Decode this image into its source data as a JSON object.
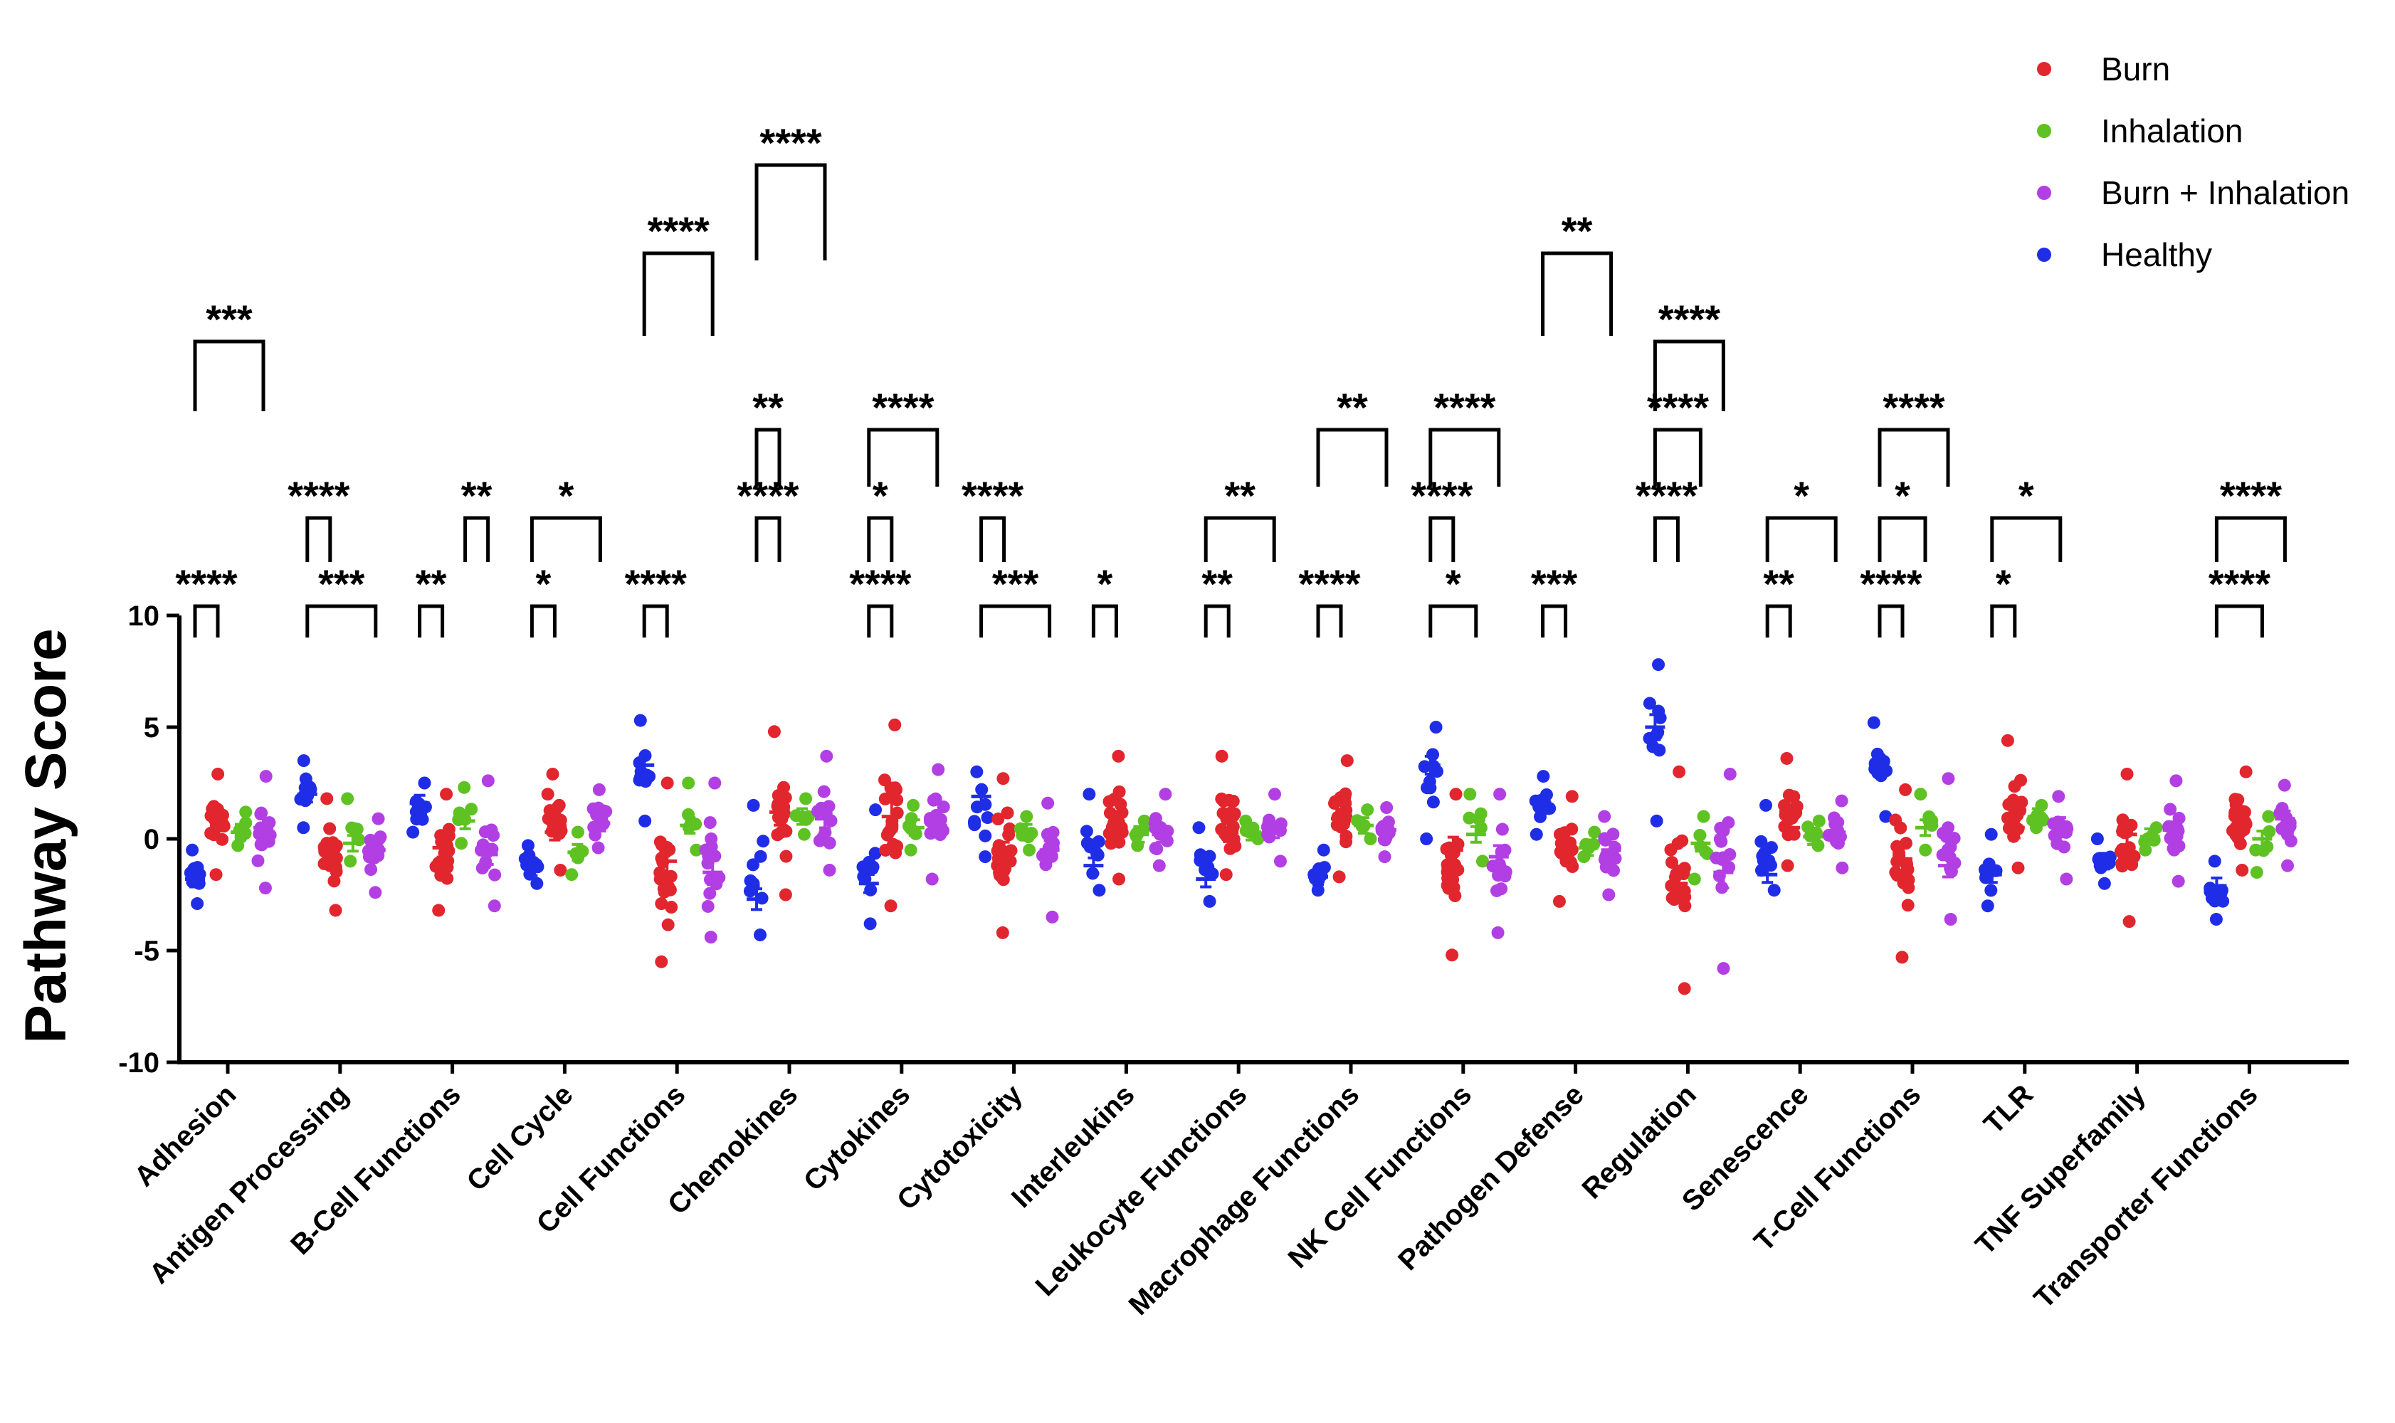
{
  "chart_data": {
    "type": "scatter",
    "ylabel": "Pathway Score",
    "ylim": [
      -10,
      10
    ],
    "yticks": [
      10,
      5,
      0,
      -5,
      -10
    ],
    "legend_placement": "top-right",
    "categories": [
      "Adhesion",
      "Antigen Processing",
      "B-Cell Functions",
      "Cell Cycle",
      "Cell Functions",
      "Chemokines",
      "Cytokines",
      "Cytotoxicity",
      "Interleukins",
      "Leukocyte Functions",
      "Macrophage Functions",
      "NK Cell Functions",
      "Pathogen Defense",
      "Regulation",
      "Senescence",
      "T-Cell Functions",
      "TLR",
      "TNF Superfamily",
      "Transporter Functions"
    ],
    "series": [
      {
        "name": "Healthy",
        "color": "#1f2ee6",
        "means": [
          -1.8,
          2.0,
          1.6,
          -1.3,
          3.3,
          -2.7,
          -2.0,
          1.9,
          -1.2,
          -1.8,
          -1.7,
          3.3,
          1.5,
          5.0,
          -1.6,
          3.4,
          -1.6,
          -1.0,
          -2.1
        ],
        "ranges": [
          [
            -2.9,
            -0.5
          ],
          [
            0.5,
            3.5
          ],
          [
            0.3,
            2.5
          ],
          [
            -2.0,
            -0.3
          ],
          [
            0.8,
            5.3
          ],
          [
            -4.3,
            1.5
          ],
          [
            -3.8,
            1.3
          ],
          [
            -0.8,
            3.0
          ],
          [
            -2.3,
            2.0
          ],
          [
            -2.8,
            0.5
          ],
          [
            -2.3,
            -0.5
          ],
          [
            0.0,
            5.0
          ],
          [
            0.2,
            2.8
          ],
          [
            0.8,
            7.8
          ],
          [
            -2.3,
            1.5
          ],
          [
            1.0,
            5.2
          ],
          [
            -3.0,
            0.2
          ],
          [
            -2.0,
            0.0
          ],
          [
            -3.6,
            -1.0
          ]
        ]
      },
      {
        "name": "Burn",
        "color": "#e1262e",
        "means": [
          0.9,
          -0.7,
          -0.4,
          0.3,
          -1.0,
          1.2,
          1.0,
          -0.7,
          0.5,
          0.3,
          0.9,
          -0.5,
          -0.5,
          -2.0,
          0.5,
          -0.9,
          0.5,
          0.2,
          0.5
        ],
        "ranges": [
          [
            -1.6,
            2.9
          ],
          [
            -3.2,
            1.8
          ],
          [
            -3.2,
            2.0
          ],
          [
            -1.4,
            2.9
          ],
          [
            -5.5,
            2.5
          ],
          [
            -2.5,
            4.8
          ],
          [
            -3.0,
            5.1
          ],
          [
            -4.2,
            2.7
          ],
          [
            -1.8,
            3.7
          ],
          [
            -1.6,
            3.7
          ],
          [
            -1.7,
            3.5
          ],
          [
            -5.2,
            2.0
          ],
          [
            -2.8,
            1.9
          ],
          [
            -6.7,
            3.0
          ],
          [
            -1.2,
            3.6
          ],
          [
            -5.3,
            2.2
          ],
          [
            -1.3,
            4.4
          ],
          [
            -3.7,
            2.9
          ],
          [
            -1.4,
            3.0
          ]
        ]
      },
      {
        "name": "Inhalation",
        "color": "#5ec223",
        "means": [
          0.3,
          -0.2,
          0.8,
          -0.6,
          0.6,
          1.0,
          0.5,
          0.3,
          0.2,
          0.3,
          0.6,
          0.2,
          -0.4,
          -0.2,
          0.1,
          0.5,
          1.0,
          0.1,
          0.0
        ],
        "ranges": [
          [
            -0.3,
            1.2
          ],
          [
            -1.0,
            1.8
          ],
          [
            -0.2,
            2.3
          ],
          [
            -1.6,
            0.3
          ],
          [
            -0.5,
            2.5
          ],
          [
            0.2,
            1.8
          ],
          [
            -0.5,
            1.5
          ],
          [
            -0.5,
            1.0
          ],
          [
            -0.3,
            0.8
          ],
          [
            0.0,
            0.8
          ],
          [
            0.0,
            1.3
          ],
          [
            -1.0,
            2.0
          ],
          [
            -0.8,
            0.3
          ],
          [
            -1.8,
            1.0
          ],
          [
            -0.3,
            0.8
          ],
          [
            -0.5,
            2.0
          ],
          [
            0.5,
            1.5
          ],
          [
            -0.5,
            0.5
          ],
          [
            -1.5,
            1.0
          ]
        ]
      },
      {
        "name": "Burn + Inhalation",
        "color": "#b23fe3",
        "means": [
          0.5,
          -0.5,
          -0.7,
          0.7,
          -1.5,
          0.9,
          0.6,
          -0.5,
          0.2,
          0.4,
          0.4,
          -0.8,
          -0.5,
          -1.5,
          0.3,
          -1.2,
          0.6,
          0.4,
          0.9
        ],
        "ranges": [
          [
            -2.2,
            2.8
          ],
          [
            -2.4,
            0.9
          ],
          [
            -3.0,
            2.6
          ],
          [
            -0.4,
            2.2
          ],
          [
            -4.4,
            2.5
          ],
          [
            -1.4,
            3.7
          ],
          [
            -1.8,
            3.1
          ],
          [
            -3.5,
            1.6
          ],
          [
            -1.2,
            2.0
          ],
          [
            -1.0,
            2.0
          ],
          [
            -0.8,
            1.4
          ],
          [
            -4.2,
            2.0
          ],
          [
            -2.5,
            1.0
          ],
          [
            -5.8,
            2.9
          ],
          [
            -1.3,
            1.7
          ],
          [
            -3.6,
            2.7
          ],
          [
            -1.8,
            1.9
          ],
          [
            -1.9,
            2.6
          ],
          [
            -1.2,
            2.4
          ]
        ]
      }
    ],
    "significance": [
      {
        "category": "Adhesion",
        "from": "Healthy",
        "to": "Burn",
        "label": "****",
        "level": 1
      },
      {
        "category": "Adhesion",
        "from": "Healthy",
        "to": "Burn + Inhalation",
        "label": "***",
        "level": 4
      },
      {
        "category": "Antigen Processing",
        "from": "Healthy",
        "to": "Burn + Inhalation",
        "label": "***",
        "level": 1
      },
      {
        "category": "Antigen Processing",
        "from": "Healthy",
        "to": "Burn",
        "label": "****",
        "level": 2
      },
      {
        "category": "B-Cell Functions",
        "from": "Healthy",
        "to": "Burn",
        "label": "**",
        "level": 1
      },
      {
        "category": "B-Cell Functions",
        "from": "Inhalation",
        "to": "Burn + Inhalation",
        "label": "**",
        "level": 2
      },
      {
        "category": "Cell Cycle",
        "from": "Healthy",
        "to": "Burn",
        "label": "*",
        "level": 1
      },
      {
        "category": "Cell Cycle",
        "from": "Healthy",
        "to": "Burn + Inhalation",
        "label": "*",
        "level": 2
      },
      {
        "category": "Cell Functions",
        "from": "Healthy",
        "to": "Burn",
        "label": "****",
        "level": 1
      },
      {
        "category": "Cell Functions",
        "from": "Healthy",
        "to": "Burn + Inhalation",
        "label": "****",
        "level": 5
      },
      {
        "category": "Chemokines",
        "from": "Healthy",
        "to": "Burn",
        "label": "****",
        "level": 2
      },
      {
        "category": "Chemokines",
        "from": "Healthy",
        "to": "Burn",
        "label": "**",
        "level": 3
      },
      {
        "category": "Chemokines",
        "from": "Healthy",
        "to": "Burn + Inhalation",
        "label": "****",
        "level": 6
      },
      {
        "category": "Cytokines",
        "from": "Healthy",
        "to": "Burn",
        "label": "****",
        "level": 1
      },
      {
        "category": "Cytokines",
        "from": "Healthy",
        "to": "Burn",
        "label": "*",
        "level": 2
      },
      {
        "category": "Cytokines",
        "from": "Healthy",
        "to": "Burn + Inhalation",
        "label": "****",
        "level": 3
      },
      {
        "category": "Cytotoxicity",
        "from": "Healthy",
        "to": "Burn + Inhalation",
        "label": "***",
        "level": 1
      },
      {
        "category": "Cytotoxicity",
        "from": "Healthy",
        "to": "Burn",
        "label": "****",
        "level": 2
      },
      {
        "category": "Interleukins",
        "from": "Healthy",
        "to": "Burn",
        "label": "*",
        "level": 1
      },
      {
        "category": "Leukocyte Functions",
        "from": "Healthy",
        "to": "Burn",
        "label": "**",
        "level": 1
      },
      {
        "category": "Leukocyte Functions",
        "from": "Healthy",
        "to": "Burn + Inhalation",
        "label": "**",
        "level": 2
      },
      {
        "category": "Macrophage Functions",
        "from": "Healthy",
        "to": "Burn",
        "label": "****",
        "level": 1
      },
      {
        "category": "Macrophage Functions",
        "from": "Healthy",
        "to": "Burn + Inhalation",
        "label": "**",
        "level": 3
      },
      {
        "category": "NK Cell Functions",
        "from": "Healthy",
        "to": "Inhalation",
        "label": "*",
        "level": 1
      },
      {
        "category": "NK Cell Functions",
        "from": "Healthy",
        "to": "Burn",
        "label": "****",
        "level": 2
      },
      {
        "category": "NK Cell Functions",
        "from": "Healthy",
        "to": "Burn + Inhalation",
        "label": "****",
        "level": 3
      },
      {
        "category": "Pathogen Defense",
        "from": "Healthy",
        "to": "Burn",
        "label": "***",
        "level": 1
      },
      {
        "category": "Pathogen Defense",
        "from": "Healthy",
        "to": "Burn + Inhalation",
        "label": "**",
        "level": 5
      },
      {
        "category": "Regulation",
        "from": "Healthy",
        "to": "Burn",
        "label": "****",
        "level": 2
      },
      {
        "category": "Regulation",
        "from": "Healthy",
        "to": "Inhalation",
        "label": "****",
        "level": 3
      },
      {
        "category": "Regulation",
        "from": "Healthy",
        "to": "Burn + Inhalation",
        "label": "****",
        "level": 4
      },
      {
        "category": "Senescence",
        "from": "Healthy",
        "to": "Burn",
        "label": "**",
        "level": 1
      },
      {
        "category": "Senescence",
        "from": "Healthy",
        "to": "Burn + Inhalation",
        "label": "*",
        "level": 2
      },
      {
        "category": "T-Cell Functions",
        "from": "Healthy",
        "to": "Burn",
        "label": "****",
        "level": 1
      },
      {
        "category": "T-Cell Functions",
        "from": "Healthy",
        "to": "Inhalation",
        "label": "*",
        "level": 2
      },
      {
        "category": "T-Cell Functions",
        "from": "Healthy",
        "to": "Burn + Inhalation",
        "label": "****",
        "level": 3
      },
      {
        "category": "TLR",
        "from": "Healthy",
        "to": "Burn",
        "label": "*",
        "level": 1
      },
      {
        "category": "TLR",
        "from": "Healthy",
        "to": "Burn + Inhalation",
        "label": "*",
        "level": 2
      },
      {
        "category": "Transporter Functions",
        "from": "Healthy",
        "to": "Inhalation",
        "label": "****",
        "level": 1
      },
      {
        "category": "Transporter Functions",
        "from": "Healthy",
        "to": "Burn + Inhalation",
        "label": "****",
        "level": 2
      }
    ]
  },
  "legend": {
    "items": [
      {
        "label": "Burn",
        "color": "#e1262e"
      },
      {
        "label": "Inhalation",
        "color": "#5ec223"
      },
      {
        "label": "Burn + Inhalation",
        "color": "#b23fe3"
      },
      {
        "label": "Healthy",
        "color": "#1f2ee6"
      }
    ]
  }
}
